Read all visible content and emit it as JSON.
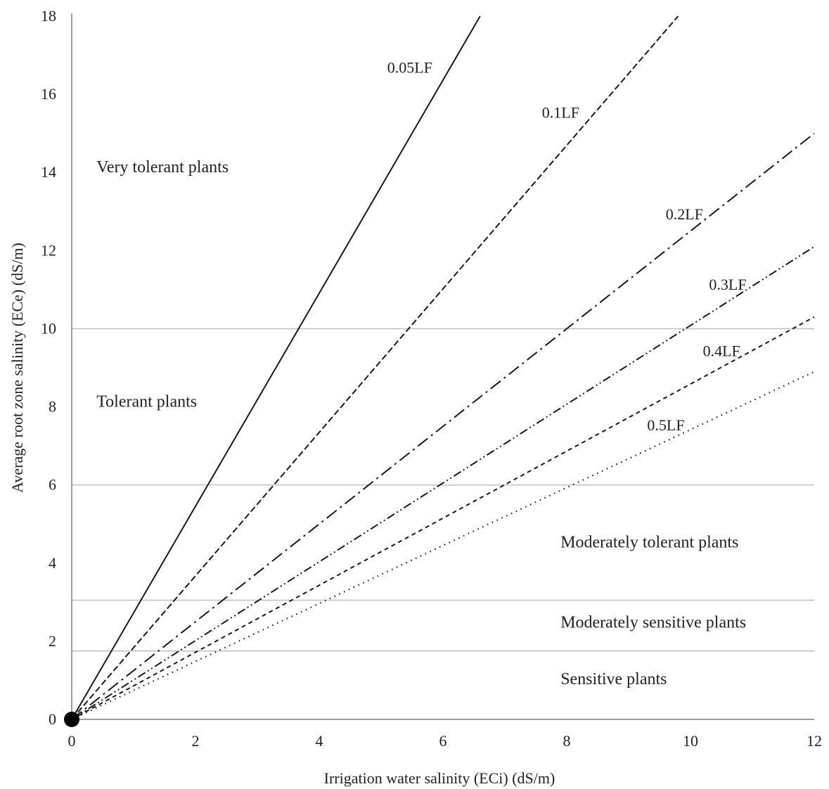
{
  "chart_data": {
    "type": "line",
    "xlabel": "Irrigation water salinity (ECi) (dS/m)",
    "ylabel": "Average root zone salinity (ECe) (dS/m)",
    "xlim": [
      0,
      12
    ],
    "ylim": [
      0,
      18
    ],
    "x_ticks": [
      0,
      2,
      4,
      6,
      8,
      10,
      12
    ],
    "y_ticks": [
      0,
      2,
      4,
      6,
      8,
      10,
      12,
      14,
      16,
      18
    ],
    "x_tick_labels": [
      "0",
      "2",
      "4",
      "6",
      "8",
      "10",
      "12"
    ],
    "y_tick_labels": [
      "0",
      "2",
      "4",
      "6",
      "8",
      "10",
      "12",
      "14",
      "16",
      "18"
    ],
    "threshold_lines": [
      1.75,
      3.05,
      6,
      10
    ],
    "zones": [
      {
        "label": "Very tolerant plants",
        "x": 0.4,
        "y": 14
      },
      {
        "label": "Tolerant plants",
        "x": 0.4,
        "y": 8
      },
      {
        "label": "Moderately tolerant plants",
        "x": 7.9,
        "y": 4.4
      },
      {
        "label": "Moderately sensitive plants",
        "x": 7.9,
        "y": 2.35
      },
      {
        "label": "Sensitive plants",
        "x": 7.9,
        "y": 0.9
      }
    ],
    "origin_point": {
      "x": 0,
      "y": 0
    },
    "series": [
      {
        "name": "0.05LF",
        "x": [
          0,
          6.6
        ],
        "y": [
          0,
          18.0
        ],
        "dash": "solid",
        "label_at": {
          "x": 5.1,
          "y": 16.55
        }
      },
      {
        "name": "0.1LF",
        "x": [
          0,
          9.8
        ],
        "y": [
          0,
          18.0
        ],
        "dash": "dashed",
        "label_at": {
          "x": 7.6,
          "y": 15.4
        }
      },
      {
        "name": "0.2LF",
        "x": [
          0,
          12
        ],
        "y": [
          0,
          15.0
        ],
        "dash": "dash-dot",
        "label_at": {
          "x": 9.6,
          "y": 12.8
        }
      },
      {
        "name": "0.3LF",
        "x": [
          0,
          12
        ],
        "y": [
          0,
          12.1
        ],
        "dash": "dash-dot-dot",
        "label_at": {
          "x": 10.3,
          "y": 11.0
        }
      },
      {
        "name": "0.4LF",
        "x": [
          0,
          12
        ],
        "y": [
          0,
          10.3
        ],
        "dash": "short-dash",
        "label_at": {
          "x": 10.2,
          "y": 9.3
        }
      },
      {
        "name": "0.5LF",
        "x": [
          0,
          12
        ],
        "y": [
          0,
          8.9
        ],
        "dash": "dotted",
        "label_at": {
          "x": 9.3,
          "y": 7.4
        }
      }
    ],
    "colors": {
      "axis": "#7f7f7f",
      "threshold": "#bfbfbf",
      "lines": "#1a1a1a",
      "text": "#222222"
    }
  }
}
